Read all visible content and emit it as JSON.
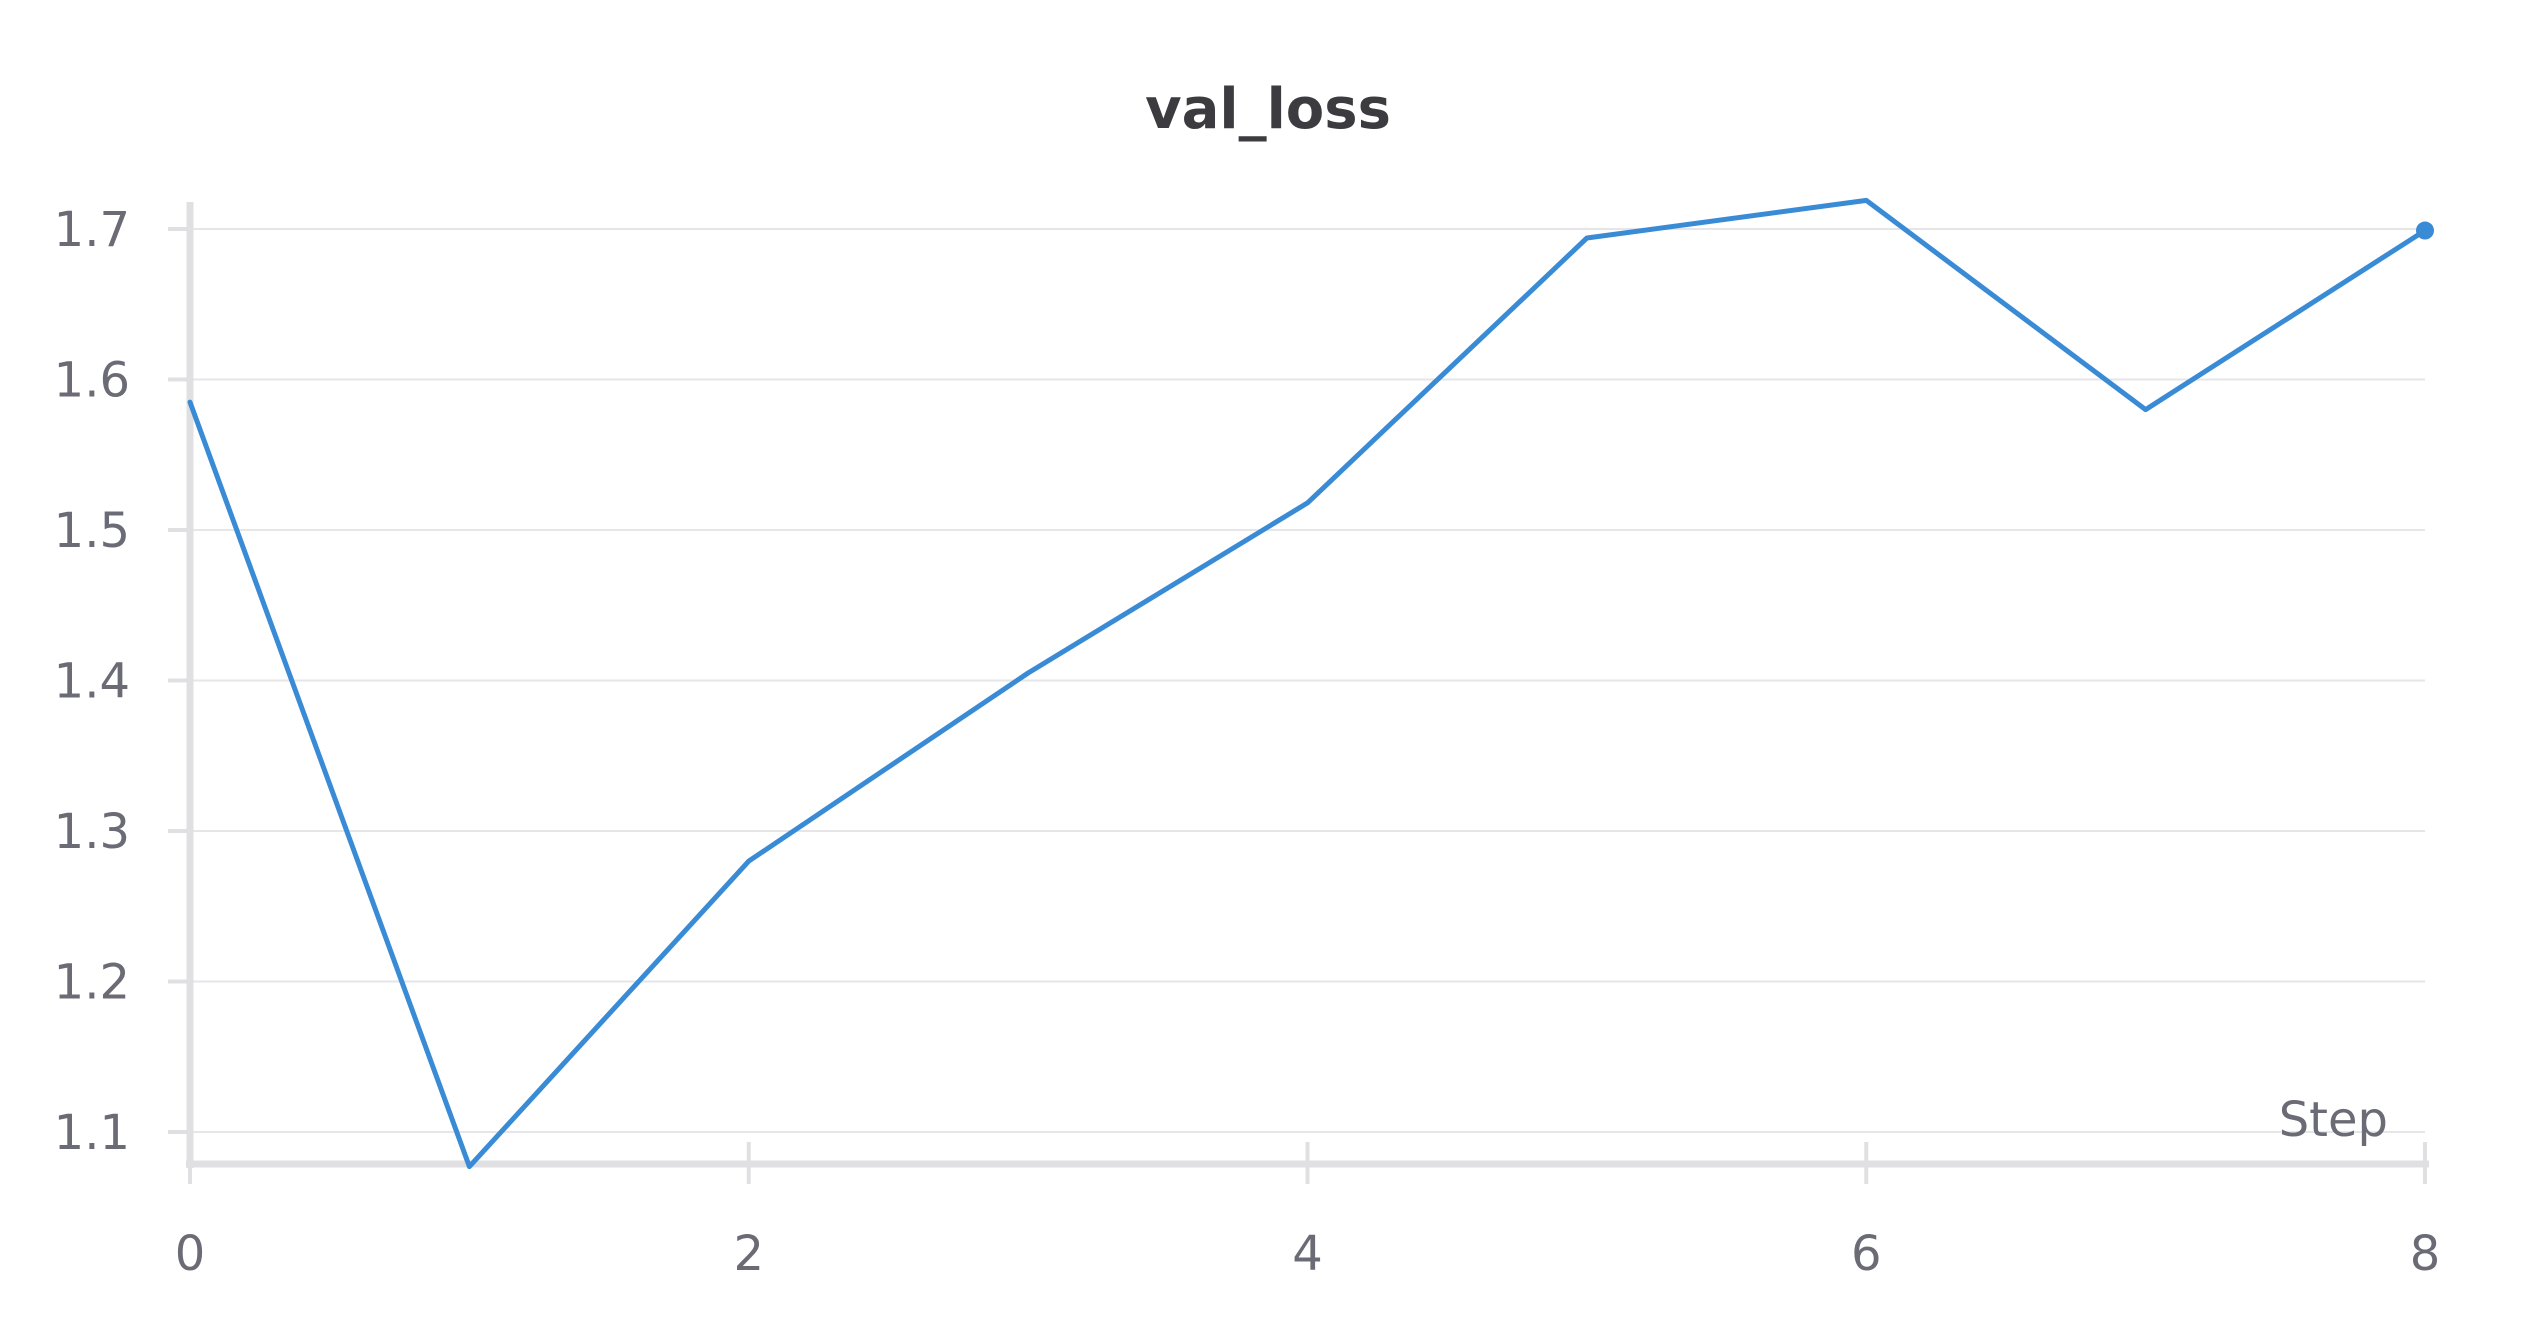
{
  "chart_data": {
    "type": "line",
    "title": "val_loss",
    "xlabel": "Step",
    "ylabel": "",
    "xlim": [
      0,
      8
    ],
    "ylim": [
      1.08,
      1.72
    ],
    "x_ticks": [
      "0",
      "2",
      "4",
      "6",
      "8"
    ],
    "y_ticks": [
      "1.1",
      "1.2",
      "1.3",
      "1.4",
      "1.5",
      "1.6",
      "1.7"
    ],
    "grid": true,
    "legend": "none",
    "series": [
      {
        "color": "#3a8bd6",
        "x": [
          0,
          1,
          2,
          3,
          4,
          5,
          6,
          7,
          8
        ],
        "y": [
          1.585,
          1.077,
          1.28,
          1.405,
          1.518,
          1.694,
          1.719,
          1.58,
          1.699
        ]
      }
    ]
  }
}
